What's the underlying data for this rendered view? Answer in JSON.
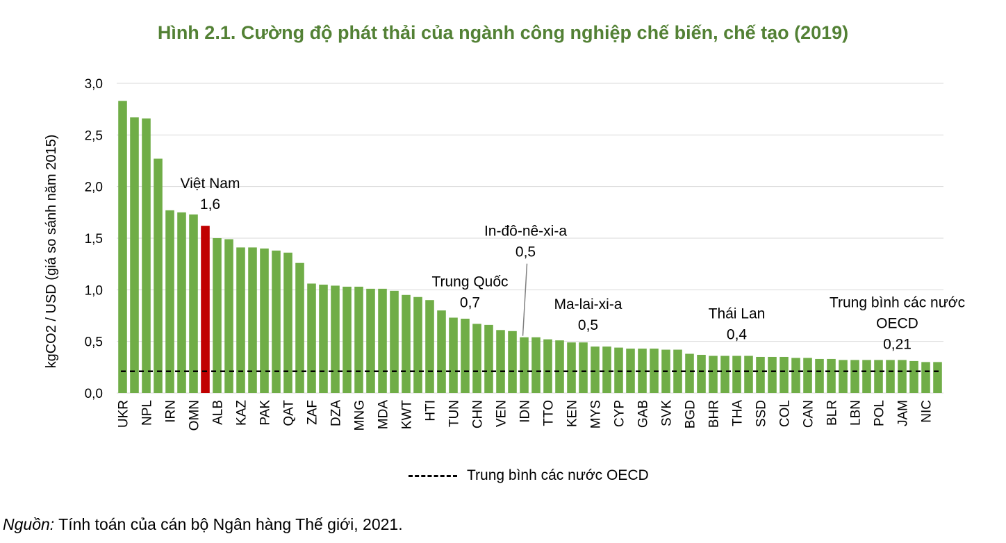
{
  "chart_data": {
    "type": "bar",
    "title": "Hình 2.1. Cường độ phát thải của ngành công nghiệp chế biến, chế tạo (2019)",
    "ylabel": "kgCO2 / USD (giá so sánh năm 2015)",
    "ylim": [
      0,
      3.0
    ],
    "yticks": [
      "0,0",
      "0,5",
      "1,0",
      "1,5",
      "2,0",
      "2,5",
      "3,0"
    ],
    "grid": true,
    "legend_position": "bottom",
    "bars": [
      {
        "cat": "UKR",
        "value": 2.83
      },
      {
        "cat": "",
        "value": 2.67
      },
      {
        "cat": "NPL",
        "value": 2.66
      },
      {
        "cat": "",
        "value": 2.27
      },
      {
        "cat": "IRN",
        "value": 1.77
      },
      {
        "cat": "",
        "value": 1.75
      },
      {
        "cat": "OMN",
        "value": 1.73
      },
      {
        "cat": "",
        "value": 1.62,
        "highlight": true
      },
      {
        "cat": "ALB",
        "value": 1.5
      },
      {
        "cat": "",
        "value": 1.49
      },
      {
        "cat": "KAZ",
        "value": 1.41
      },
      {
        "cat": "",
        "value": 1.41
      },
      {
        "cat": "PAK",
        "value": 1.4
      },
      {
        "cat": "",
        "value": 1.38
      },
      {
        "cat": "QAT",
        "value": 1.36
      },
      {
        "cat": "",
        "value": 1.26
      },
      {
        "cat": "ZAF",
        "value": 1.06
      },
      {
        "cat": "",
        "value": 1.05
      },
      {
        "cat": "DZA",
        "value": 1.04
      },
      {
        "cat": "",
        "value": 1.03
      },
      {
        "cat": "MNG",
        "value": 1.03
      },
      {
        "cat": "",
        "value": 1.01
      },
      {
        "cat": "MDA",
        "value": 1.01
      },
      {
        "cat": "",
        "value": 0.99
      },
      {
        "cat": "KWT",
        "value": 0.95
      },
      {
        "cat": "",
        "value": 0.93
      },
      {
        "cat": "HTI",
        "value": 0.9
      },
      {
        "cat": "",
        "value": 0.8
      },
      {
        "cat": "TUN",
        "value": 0.73
      },
      {
        "cat": "",
        "value": 0.72
      },
      {
        "cat": "CHN",
        "value": 0.67
      },
      {
        "cat": "",
        "value": 0.66
      },
      {
        "cat": "VEN",
        "value": 0.61
      },
      {
        "cat": "",
        "value": 0.6
      },
      {
        "cat": "IDN",
        "value": 0.54
      },
      {
        "cat": "",
        "value": 0.54
      },
      {
        "cat": "TTO",
        "value": 0.52
      },
      {
        "cat": "",
        "value": 0.51
      },
      {
        "cat": "KEN",
        "value": 0.49
      },
      {
        "cat": "",
        "value": 0.49
      },
      {
        "cat": "MYS",
        "value": 0.45
      },
      {
        "cat": "",
        "value": 0.45
      },
      {
        "cat": "CYP",
        "value": 0.44
      },
      {
        "cat": "",
        "value": 0.43
      },
      {
        "cat": "GAB",
        "value": 0.43
      },
      {
        "cat": "",
        "value": 0.43
      },
      {
        "cat": "SVK",
        "value": 0.42
      },
      {
        "cat": "",
        "value": 0.42
      },
      {
        "cat": "BGD",
        "value": 0.38
      },
      {
        "cat": "",
        "value": 0.37
      },
      {
        "cat": "BHR",
        "value": 0.36
      },
      {
        "cat": "",
        "value": 0.36
      },
      {
        "cat": "THA",
        "value": 0.36
      },
      {
        "cat": "",
        "value": 0.36
      },
      {
        "cat": "SSD",
        "value": 0.35
      },
      {
        "cat": "",
        "value": 0.35
      },
      {
        "cat": "COL",
        "value": 0.35
      },
      {
        "cat": "",
        "value": 0.34
      },
      {
        "cat": "CAN",
        "value": 0.34
      },
      {
        "cat": "",
        "value": 0.33
      },
      {
        "cat": "BLR",
        "value": 0.33
      },
      {
        "cat": "",
        "value": 0.32
      },
      {
        "cat": "LBN",
        "value": 0.32
      },
      {
        "cat": "",
        "value": 0.32
      },
      {
        "cat": "POL",
        "value": 0.32
      },
      {
        "cat": "",
        "value": 0.32
      },
      {
        "cat": "JAM",
        "value": 0.32
      },
      {
        "cat": "",
        "value": 0.31
      },
      {
        "cat": "NIC",
        "value": 0.3
      },
      {
        "cat": "",
        "value": 0.3
      }
    ],
    "reference_line": {
      "name": "Trung bình các nước OECD",
      "value": 0.21
    },
    "annotations": [
      {
        "lines": [
          "Việt Nam",
          "1,6"
        ],
        "bar_index": 7
      },
      {
        "lines": [
          "In-đô-nê-xi-a",
          "0,5"
        ],
        "bar_index": 34,
        "leader": true
      },
      {
        "lines": [
          "Trung Quốc",
          "0,7"
        ],
        "bar_index": 30
      },
      {
        "lines": [
          "Ma-lai-xi-a",
          "0,5"
        ],
        "bar_index": 40
      },
      {
        "lines": [
          "Thái Lan",
          "0,4"
        ],
        "bar_index": 52
      },
      {
        "lines": [
          "Trung bình các nước",
          "OECD",
          "0,21"
        ],
        "bar_index": 66
      }
    ],
    "colors": {
      "bar": "#70AD47",
      "highlight": "#C00000",
      "reference": "#000000",
      "grid": "#D9D9D9"
    }
  },
  "legend": {
    "label": "Trung bình các nước OECD"
  },
  "source": {
    "label": "Nguồn:",
    "text": " Tính toán của cán bộ Ngân hàng Thế giới, 2021."
  }
}
